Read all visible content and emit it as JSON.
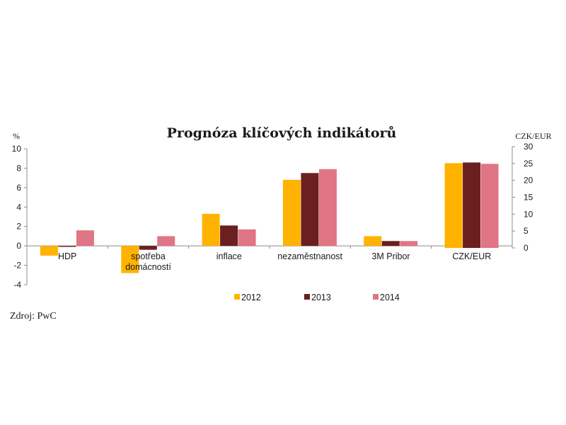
{
  "chart_data": {
    "type": "bar",
    "title": "Prognóza klíčových indikátorů",
    "left_axis": {
      "unit": "%",
      "ylim": [
        -4,
        10
      ],
      "ticks": [
        -4,
        -2,
        0,
        2,
        4,
        6,
        8,
        10
      ]
    },
    "right_axis": {
      "unit": "CZK/EUR",
      "ylim": [
        0,
        30
      ],
      "ticks": [
        0,
        5,
        10,
        15,
        20,
        25,
        30
      ]
    },
    "categories": [
      {
        "label": "HDP",
        "axis": "left"
      },
      {
        "label": "spotřeba\ndomácností",
        "axis": "left"
      },
      {
        "label": "inflace",
        "axis": "left"
      },
      {
        "label": "nezaměstnanost",
        "axis": "left"
      },
      {
        "label": "3M Pribor",
        "axis": "left"
      },
      {
        "label": "CZK/EUR",
        "axis": "right"
      }
    ],
    "series": [
      {
        "name": "2012",
        "color": "#FFB300",
        "values": [
          -1.0,
          -2.8,
          3.3,
          6.8,
          1.0,
          25.1
        ]
      },
      {
        "name": "2013",
        "color": "#6B1F1F",
        "values": [
          -0.1,
          -0.4,
          2.1,
          7.5,
          0.5,
          25.3
        ]
      },
      {
        "name": "2014",
        "color": "#E07585",
        "values": [
          1.6,
          1.0,
          1.7,
          7.9,
          0.5,
          24.9
        ]
      }
    ],
    "grid": false,
    "legend_position": "bottom"
  },
  "source": "Zdroj: PwC"
}
